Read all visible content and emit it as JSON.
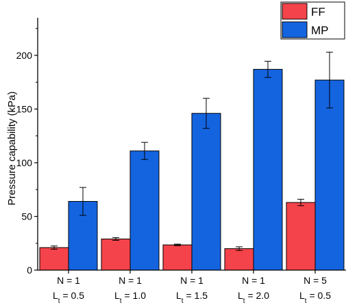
{
  "chart_data": {
    "type": "bar",
    "categories": [
      {
        "line1": "N = 1",
        "line2_main": "L",
        "line2_sub": "t",
        "line2_rest": " = 0.5"
      },
      {
        "line1": "N = 1",
        "line2_main": "L",
        "line2_sub": "t",
        "line2_rest": " = 1.0"
      },
      {
        "line1": "N = 1",
        "line2_main": "L",
        "line2_sub": "t",
        "line2_rest": " = 1.5"
      },
      {
        "line1": "N = 1",
        "line2_main": "L",
        "line2_sub": "t",
        "line2_rest": " = 2.0"
      },
      {
        "line1": "N = 5",
        "line2_main": "L",
        "line2_sub": "t",
        "line2_rest": " = 0.5"
      }
    ],
    "series": [
      {
        "name": "FF",
        "color": "#f4434a",
        "values": [
          21,
          29,
          23.5,
          20,
          63
        ],
        "errors": [
          1.5,
          1.3,
          0.7,
          1.7,
          3
        ]
      },
      {
        "name": "MP",
        "color": "#1464e0",
        "values": [
          64,
          111,
          146,
          187,
          177
        ],
        "errors": [
          13,
          8,
          14,
          7.5,
          26
        ]
      }
    ],
    "ylabel": "Pressure capability (kPa)",
    "xlabel": "",
    "ylim": [
      0,
      235
    ],
    "yticks": [
      0,
      50,
      100,
      150,
      200
    ],
    "legend_position": "top-right",
    "grid": false
  }
}
